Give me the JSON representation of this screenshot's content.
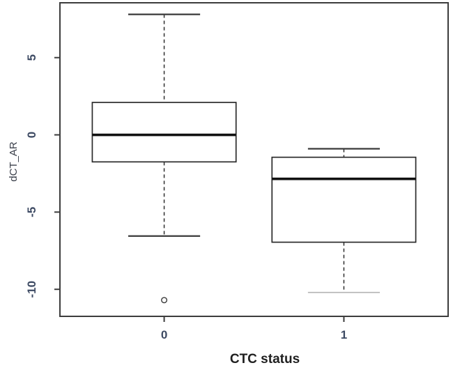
{
  "chart_data": {
    "type": "boxplot",
    "title": "",
    "xlabel": "CTC status",
    "ylabel": "dCT_AR",
    "categories": [
      "0",
      "1"
    ],
    "y_ticks": [
      5,
      0,
      -5,
      -10
    ],
    "ylim": [
      -11.75,
      8.55
    ],
    "grid": false,
    "legend": null,
    "series": [
      {
        "category": "0",
        "whisker_low": -6.55,
        "q1": -1.75,
        "median": 0.0,
        "q3": 2.1,
        "whisker_high": 7.8,
        "outliers": [
          -10.7
        ],
        "cap_low_muted": false
      },
      {
        "category": "1",
        "whisker_low": -10.2,
        "q1": -6.95,
        "median": -2.85,
        "q3": -1.45,
        "whisker_high": -0.9,
        "outliers": [],
        "cap_low_muted": true
      }
    ],
    "styles": {
      "background": "#ffffff",
      "axis_color": "#3c3c3c",
      "box_color": "#2a2a2a",
      "median_color": "#111111",
      "whisker_color": "#2e2e2e",
      "cap_color": "#3a3a3a",
      "muted_cap_color": "#b3b3b3",
      "outlier_color": "#3a3a3a",
      "tick_label_color": "#3d4a63",
      "axis_title_color": "#1f1f1f"
    }
  }
}
